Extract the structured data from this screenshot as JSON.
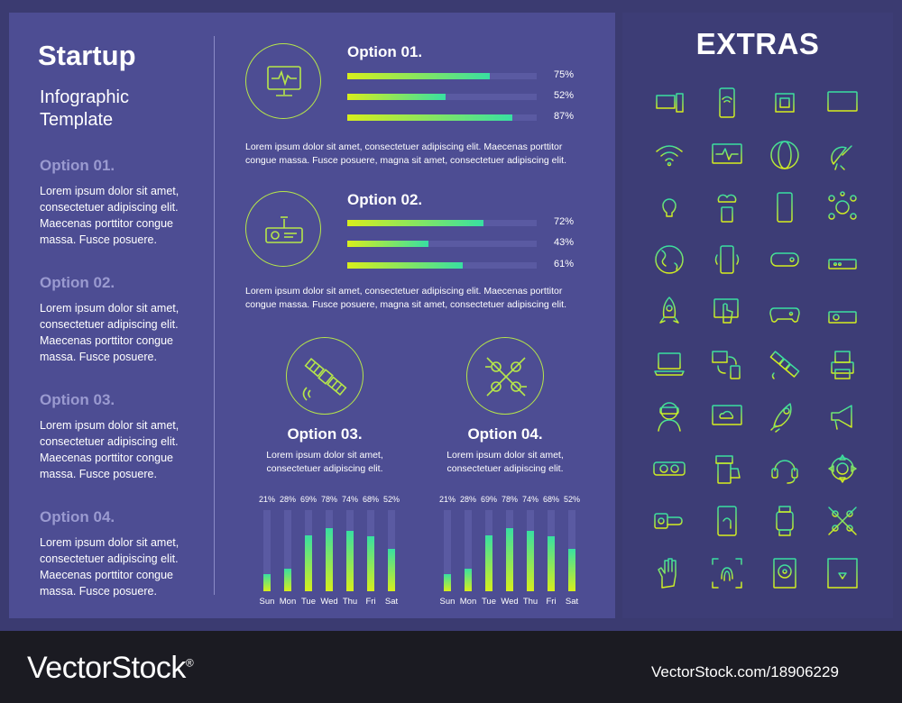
{
  "left": {
    "title": "Startup",
    "subtitle_line1": "Infographic",
    "subtitle_line2": "Template",
    "options": [
      {
        "label": "Option 01.",
        "lines": [
          "Lorem ipsum dolor sit amet,",
          "consectetuer adipiscing elit.",
          "Maecenas porttitor congue",
          "massa. Fusce posuere."
        ]
      },
      {
        "label": "Option 02.",
        "lines": [
          "Lorem ipsum dolor sit amet,",
          "consectetuer adipiscing elit.",
          "Maecenas porttitor congue",
          "massa. Fusce posuere."
        ]
      },
      {
        "label": "Option 03.",
        "lines": [
          "Lorem ipsum dolor sit amet,",
          "consectetuer adipiscing elit.",
          "Maecenas porttitor congue",
          "massa. Fusce posuere."
        ]
      },
      {
        "label": "Option 04.",
        "lines": [
          "Lorem ipsum dolor sit amet,",
          "consectetuer adipiscing elit.",
          "Maecenas porttitor congue",
          "massa. Fusce posuere."
        ]
      }
    ]
  },
  "opt1": {
    "title": "Option 01.",
    "icon": "monitor-pulse-icon",
    "bars": [
      {
        "value": 75,
        "label": "75%"
      },
      {
        "value": 52,
        "label": "52%"
      },
      {
        "value": 87,
        "label": "87%"
      }
    ],
    "text1": "Lorem ipsum dolor sit amet, consectetuer adipiscing elit. Maecenas porttitor",
    "text2": "congue massa. Fusce posuere, magna sit amet, consectetuer adipiscing elit."
  },
  "opt2": {
    "title": "Option 02.",
    "icon": "projector-icon",
    "bars": [
      {
        "value": 72,
        "label": "72%"
      },
      {
        "value": 43,
        "label": "43%"
      },
      {
        "value": 61,
        "label": "61%"
      }
    ],
    "text1": "Lorem ipsum dolor sit amet, consectetuer adipiscing elit. Maecenas porttitor",
    "text2": "congue massa. Fusce posuere, magna sit amet, consectetuer adipiscing elit."
  },
  "opt3": {
    "title": "Option 03.",
    "icon": "satellite-icon",
    "text1": "Lorem ipsum dolor sit amet,",
    "text2": "consectetuer adipiscing elit."
  },
  "opt4": {
    "title": "Option 04.",
    "icon": "network-nodes-icon",
    "text1": "Lorem ipsum dolor sit amet,",
    "text2": "consectetuer adipiscing elit."
  },
  "chart_data": [
    {
      "type": "bar",
      "categories": [
        "Sun",
        "Mon",
        "Tue",
        "Wed",
        "Thu",
        "Fri",
        "Sat"
      ],
      "values": [
        21,
        28,
        69,
        78,
        74,
        68,
        52
      ],
      "value_labels": [
        "21%",
        "28%",
        "69%",
        "78%",
        "74%",
        "68%",
        "52%"
      ],
      "ylim": [
        0,
        100
      ]
    },
    {
      "type": "bar",
      "categories": [
        "Sun",
        "Mon",
        "Tue",
        "Wed",
        "Thu",
        "Fri",
        "Sat"
      ],
      "values": [
        21,
        28,
        69,
        78,
        74,
        68,
        52
      ],
      "value_labels": [
        "21%",
        "28%",
        "69%",
        "78%",
        "74%",
        "68%",
        "52%"
      ],
      "ylim": [
        0,
        100
      ]
    }
  ],
  "extras": {
    "title": "EXTRAS",
    "icons": [
      "computer-devices-icon",
      "smartphone-wifi-icon",
      "cpu-chip-icon",
      "monitor-icon",
      "wifi-icon",
      "monitor-pulse-icon",
      "www-globe-icon",
      "satellite-dish-icon",
      "light-bulb-icon",
      "cloud-phone-icon",
      "smartphone-icon",
      "network-nodes-icon",
      "globe-icon",
      "phone-vibrate-icon",
      "game-console-icon",
      "router-icon",
      "rocket-icon",
      "touch-screen-icon",
      "gamepad-icon",
      "projector-icon",
      "laptop-icon",
      "device-sync-icon",
      "satellite-icon",
      "printer-icon",
      "vr-headset-icon",
      "cloud-monitor-icon",
      "rocket-launch-icon",
      "megaphone-icon",
      "vr-glasses-icon",
      "hand-phone-icon",
      "headset-icon",
      "gear-icon",
      "smartwatch-hand-icon",
      "fingerprint-phone-icon",
      "smartwatch-icon",
      "molecules-icon",
      "robot-hand-icon",
      "fingerprint-scan-icon",
      "hard-drive-icon",
      "3d-printer-icon"
    ]
  },
  "footer": {
    "brand": "VectorStock",
    "registered": "®",
    "url": "VectorStock.com/18906229"
  },
  "colors": {
    "accent_start": "#d8ee1c",
    "accent_end": "#38dfa2",
    "panel": "#4d4d93",
    "background": "#3b3b71"
  }
}
